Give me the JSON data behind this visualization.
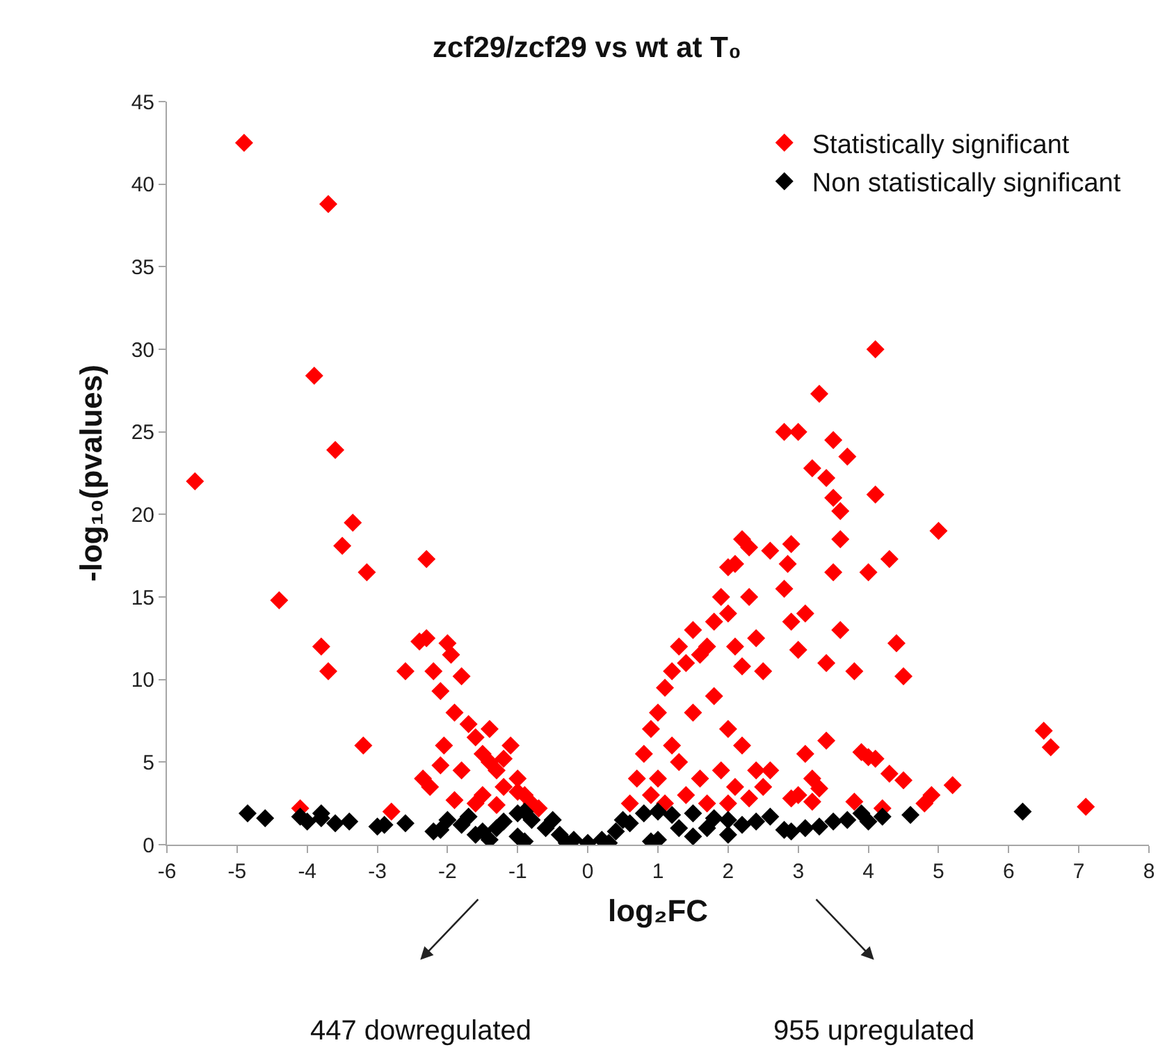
{
  "chart_data": {
    "type": "scatter",
    "title": "zcf29/zcf29 vs wt at T₀",
    "xlabel": "log₂FC",
    "ylabel": "-log₁₀(pvalues)",
    "xlim": [
      -6,
      8
    ],
    "xticks": [
      -6,
      -5,
      -4,
      -3,
      -2,
      -1,
      0,
      1,
      2,
      3,
      4,
      5,
      6,
      7,
      8
    ],
    "ylim": [
      0,
      45
    ],
    "yticks": [
      0,
      5,
      10,
      15,
      20,
      25,
      30,
      35,
      40,
      45
    ],
    "grid": false,
    "legend": "top right",
    "marker": "diamond",
    "annotations": [
      "447 dowregulated",
      "955 upregulated"
    ],
    "series": [
      {
        "name": "Statistically significant",
        "color": "#ff0000",
        "x": [
          -5.6,
          -4.9,
          -4.4,
          -4.1,
          -3.9,
          -3.8,
          -3.7,
          -3.7,
          -3.6,
          -3.5,
          -3.35,
          -3.2,
          -3.15,
          -2.8,
          -2.6,
          -2.4,
          -2.35,
          -2.3,
          -2.3,
          -2.25,
          -2.2,
          -2.1,
          -2.05,
          -2,
          -1.95,
          -1.9,
          -1.8,
          -1.7,
          -1.6,
          -1.5,
          -1.4,
          -1.3,
          -1.2,
          -1.1,
          -1,
          -0.9,
          -0.8,
          -1.5,
          -1.8,
          -2.1,
          -1.3,
          -1.6,
          -1.9,
          -1.4,
          -1.2,
          -1.0,
          -0.7,
          0.6,
          0.7,
          0.8,
          0.9,
          1,
          1.1,
          1.2,
          1.3,
          1.4,
          1.5,
          1.6,
          1.7,
          1.8,
          1.9,
          2,
          2,
          2.1,
          2.2,
          2.1,
          2.2,
          2.3,
          2.3,
          2.4,
          2.5,
          2.6,
          2.8,
          2.85,
          2.8,
          2.9,
          2.9,
          3,
          3,
          3.1,
          3.2,
          3.3,
          3.4,
          3.5,
          3.6,
          3.5,
          3.6,
          3.7,
          3.8,
          3.4,
          4.1,
          4.1,
          4.3,
          4.4,
          4.5,
          4,
          3.5,
          3.6,
          5,
          3.4,
          2.5,
          2.6,
          3,
          3.2,
          3.3,
          3.9,
          4,
          4.1,
          4.3,
          4.5,
          4.8,
          4.9,
          5.2,
          6.5,
          6.6,
          7.1,
          3.1,
          3.2,
          2.9,
          3.8,
          4.2,
          1.2,
          1.5,
          1.8,
          2,
          2.2,
          2.4,
          1,
          1.3,
          1.6,
          1.9,
          2.1,
          2.3,
          0.9,
          1.4,
          1.7,
          2,
          1.1
        ],
        "values": [
          22,
          42.5,
          14.8,
          2.2,
          28.4,
          12,
          38.8,
          10.5,
          23.9,
          18.1,
          19.5,
          6,
          16.5,
          2,
          10.5,
          12.3,
          4,
          17.3,
          12.5,
          3.5,
          10.5,
          9.3,
          6,
          12.2,
          11.5,
          8,
          10.2,
          7.3,
          6.5,
          5.5,
          7,
          4.5,
          3.5,
          6,
          4,
          3,
          2.5,
          3,
          4.5,
          4.8,
          2.4,
          2.5,
          2.7,
          5,
          5.2,
          3.2,
          2.2,
          2.5,
          4,
          5.5,
          7,
          8,
          9.5,
          10.5,
          12,
          11,
          13,
          11.5,
          12,
          13.5,
          15,
          16.8,
          14,
          17,
          18.5,
          12,
          10.8,
          15,
          18,
          12.5,
          10.5,
          17.8,
          15.5,
          17,
          25,
          18.2,
          13.5,
          25,
          11.8,
          14,
          22.8,
          27.3,
          22.2,
          24.5,
          18.5,
          16.5,
          13,
          23.5,
          10.5,
          11,
          30,
          21.2,
          17.3,
          12.2,
          10.2,
          16.5,
          21,
          20.2,
          19,
          6.3,
          3.5,
          4.5,
          3,
          2.6,
          3.4,
          5.6,
          5.3,
          5.2,
          4.3,
          3.9,
          2.5,
          3,
          3.6,
          6.9,
          5.9,
          2.3,
          5.5,
          4,
          2.8,
          2.6,
          2.2,
          6,
          8,
          9,
          7,
          6,
          4.5,
          4,
          5,
          4,
          4.5,
          3.5,
          2.8,
          3,
          3,
          2.5,
          2.5,
          2.5
        ]
      },
      {
        "name": "Non statistically significant",
        "color": "#000000",
        "x": [
          -4.85,
          -4.6,
          -4.1,
          -4,
          -3.8,
          -3.8,
          -3.6,
          -3.4,
          -3,
          -2.9,
          -2.6,
          -2.2,
          -2.1,
          -1.8,
          -1.6,
          -1.5,
          -1.3,
          -1.2,
          -1,
          -0.9,
          -0.8,
          -0.6,
          -0.4,
          -0.2,
          0,
          0.2,
          0.4,
          0.6,
          0.8,
          1,
          1.2,
          1.5,
          1.8,
          2,
          2.2,
          2.4,
          2.6,
          2.8,
          2.9,
          3.1,
          3.3,
          3.5,
          3.7,
          3.9,
          4,
          4.2,
          4.6,
          6.2,
          -1.4,
          -1,
          1,
          1.5,
          2,
          -2,
          -0.5,
          0.5,
          1.3,
          1.7,
          -1.7,
          -0.9,
          0.9,
          0.3,
          -0.3
        ],
        "values": [
          1.9,
          1.6,
          1.7,
          1.4,
          1.9,
          1.6,
          1.3,
          1.4,
          1.1,
          1.2,
          1.3,
          0.8,
          0.9,
          1.2,
          0.6,
          0.8,
          1,
          1.4,
          1.9,
          2,
          1.5,
          1,
          0.6,
          0.3,
          0.1,
          0.3,
          0.8,
          1.3,
          1.9,
          2,
          1.8,
          1.9,
          1.6,
          1.5,
          1.2,
          1.4,
          1.7,
          0.9,
          0.8,
          1,
          1.1,
          1.4,
          1.5,
          1.9,
          1.4,
          1.7,
          1.8,
          2,
          0.3,
          0.5,
          0.3,
          0.5,
          0.6,
          1.5,
          1.5,
          1.5,
          1,
          1,
          1.7,
          0.2,
          0.2,
          0.1,
          0.1
        ]
      }
    ]
  }
}
